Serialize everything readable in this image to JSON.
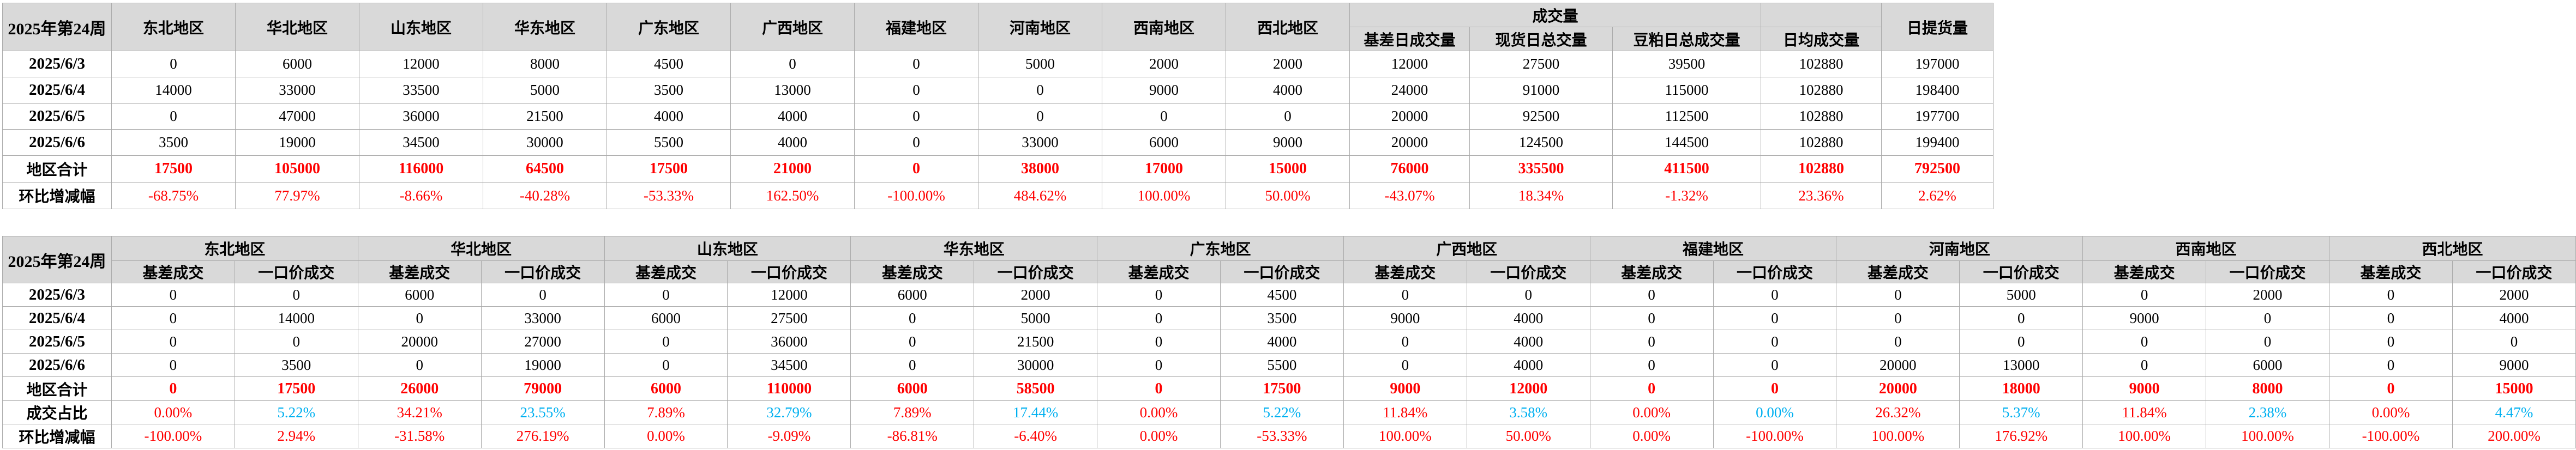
{
  "colors": {
    "header_bg": "#d9d9d9",
    "accent_red": "#ff0000",
    "accent_cyan": "#00b0f0",
    "grid_line": "#ababab"
  },
  "top_table": {
    "week_label": "2025年第24周",
    "region_headers": [
      "东北地区",
      "华北地区",
      "山东地区",
      "华东地区",
      "广东地区",
      "广西地区",
      "福建地区",
      "河南地区",
      "西南地区",
      "西北地区"
    ],
    "volume_group_header": "成交量",
    "volume_headers": [
      "基差日成交量",
      "现货日总交量",
      "豆粕日总成交量",
      "日均成交量"
    ],
    "pickup_header": "日提货量",
    "rows": [
      {
        "label": "2025/6/3",
        "values": [
          0,
          6000,
          12000,
          8000,
          4500,
          0,
          0,
          5000,
          2000,
          2000,
          12000,
          27500,
          39500,
          102880,
          197000
        ]
      },
      {
        "label": "2025/6/4",
        "values": [
          14000,
          33000,
          33500,
          5000,
          3500,
          13000,
          0,
          0,
          9000,
          4000,
          24000,
          91000,
          115000,
          102880,
          198400
        ]
      },
      {
        "label": "2025/6/5",
        "values": [
          0,
          47000,
          36000,
          21500,
          4000,
          4000,
          0,
          0,
          0,
          0,
          20000,
          92500,
          112500,
          102880,
          197700
        ]
      },
      {
        "label": "2025/6/6",
        "values": [
          3500,
          19000,
          34500,
          30000,
          5500,
          4000,
          0,
          33000,
          6000,
          9000,
          20000,
          124500,
          144500,
          102880,
          199400
        ]
      }
    ],
    "total_row": {
      "label": "地区合计",
      "values": [
        17500,
        105000,
        116000,
        64500,
        17500,
        21000,
        0,
        38000,
        17000,
        15000,
        76000,
        335500,
        411500,
        102880,
        792500
      ]
    },
    "wow_row": {
      "label": "环比增减幅",
      "values": [
        "-68.75%",
        "77.97%",
        "-8.66%",
        "-40.28%",
        "-53.33%",
        "162.50%",
        "-100.00%",
        "484.62%",
        "100.00%",
        "50.00%",
        "-43.07%",
        "18.34%",
        "-1.32%",
        "23.36%",
        "2.62%"
      ]
    }
  },
  "bottom_table": {
    "week_label": "2025年第24周",
    "region_headers": [
      "东北地区",
      "华北地区",
      "山东地区",
      "华东地区",
      "广东地区",
      "广西地区",
      "福建地区",
      "河南地区",
      "西南地区",
      "西北地区"
    ],
    "sub_headers": [
      "基差成交",
      "一口价成交"
    ],
    "rows": [
      {
        "label": "2025/6/3",
        "values": [
          0,
          0,
          6000,
          0,
          0,
          12000,
          6000,
          2000,
          0,
          4500,
          0,
          0,
          0,
          0,
          0,
          5000,
          0,
          2000,
          0,
          2000
        ]
      },
      {
        "label": "2025/6/4",
        "values": [
          0,
          14000,
          0,
          33000,
          6000,
          27500,
          0,
          5000,
          0,
          3500,
          9000,
          4000,
          0,
          0,
          0,
          0,
          9000,
          0,
          0,
          4000
        ]
      },
      {
        "label": "2025/6/5",
        "values": [
          0,
          0,
          20000,
          27000,
          0,
          36000,
          0,
          21500,
          0,
          4000,
          0,
          4000,
          0,
          0,
          0,
          0,
          0,
          0,
          0,
          0
        ]
      },
      {
        "label": "2025/6/6",
        "values": [
          0,
          3500,
          0,
          19000,
          0,
          34500,
          0,
          30000,
          0,
          5500,
          0,
          4000,
          0,
          0,
          20000,
          13000,
          0,
          6000,
          0,
          9000
        ]
      }
    ],
    "total_row": {
      "label": "地区合计",
      "values": [
        0,
        17500,
        26000,
        79000,
        6000,
        110000,
        6000,
        58500,
        0,
        17500,
        9000,
        12000,
        0,
        0,
        20000,
        18000,
        9000,
        8000,
        0,
        15000
      ]
    },
    "share_row": {
      "label": "成交占比",
      "values": [
        "0.00%",
        "5.22%",
        "34.21%",
        "23.55%",
        "7.89%",
        "32.79%",
        "7.89%",
        "17.44%",
        "0.00%",
        "5.22%",
        "11.84%",
        "3.58%",
        "0.00%",
        "0.00%",
        "26.32%",
        "5.37%",
        "11.84%",
        "2.38%",
        "0.00%",
        "4.47%"
      ]
    },
    "wow_row": {
      "label": "环比增减幅",
      "values": [
        "-100.00%",
        "2.94%",
        "-31.58%",
        "276.19%",
        "0.00%",
        "-9.09%",
        "-86.81%",
        "-6.40%",
        "0.00%",
        "-53.33%",
        "100.00%",
        "50.00%",
        "0.00%",
        "-100.00%",
        "100.00%",
        "176.92%",
        "100.00%",
        "100.00%",
        "-100.00%",
        "200.00%"
      ]
    }
  }
}
